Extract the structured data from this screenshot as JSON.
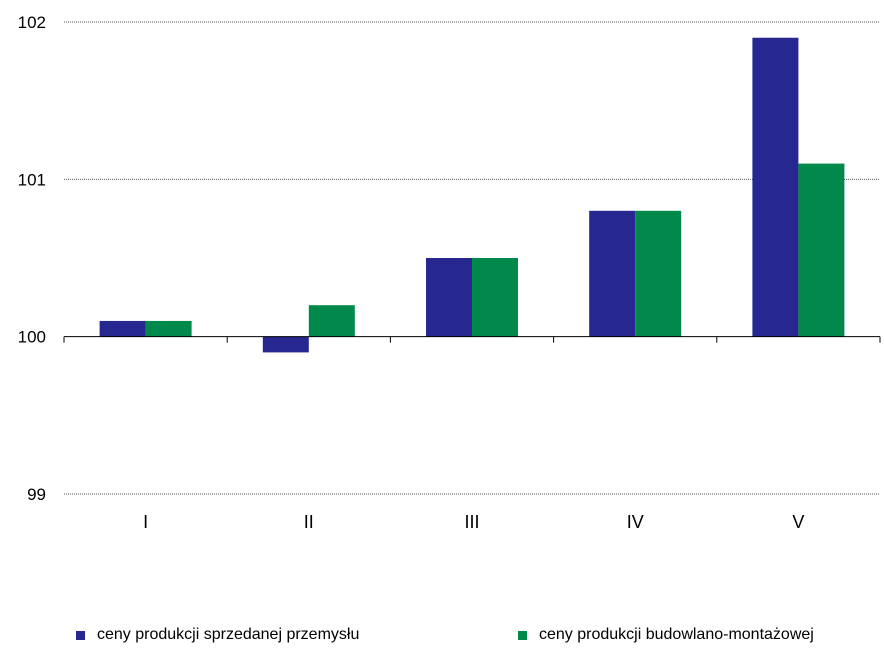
{
  "chart_data": {
    "type": "bar",
    "categories": [
      "I",
      "II",
      "III",
      "IV",
      "V"
    ],
    "baseline": 100,
    "series": [
      {
        "name": "ceny produkcji sprzedanej przemysłu",
        "color": "#27288F",
        "values": [
          100.1,
          99.9,
          100.5,
          100.8,
          101.9
        ]
      },
      {
        "name": "ceny produkcji budowlano-montażowej",
        "color": "#00894B",
        "values": [
          100.1,
          100.2,
          100.5,
          100.8,
          101.1
        ]
      }
    ],
    "ylim": [
      99,
      102
    ],
    "yticks": [
      "99",
      "100",
      "101",
      "102"
    ],
    "grid": true,
    "legend_position": "bottom"
  }
}
